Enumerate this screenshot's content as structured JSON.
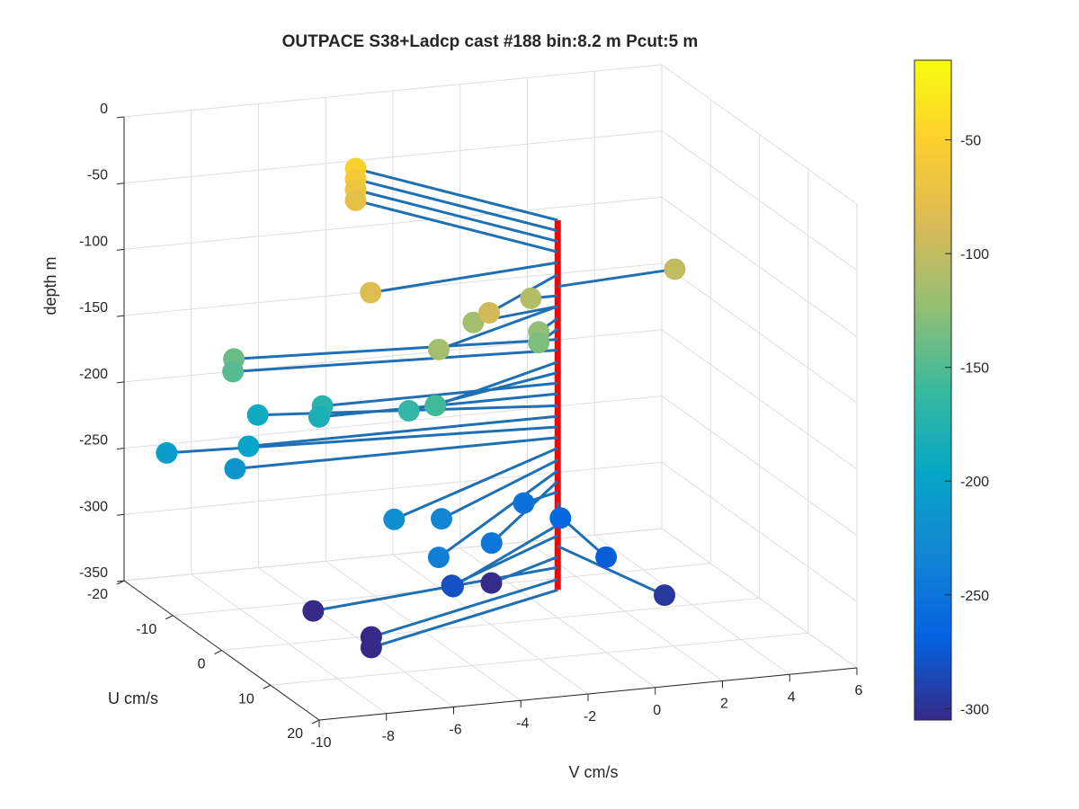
{
  "chart_data": {
    "type": "scatter",
    "title": "OUTPACE S38+Ladcp cast #188 bin:8.2 m  Pcut:5 m",
    "xlabel": "V cm/s",
    "ylabel": "U cm/s",
    "zlabel": "depth m",
    "xlim": [
      -10,
      6
    ],
    "ylim": [
      -20,
      20
    ],
    "zlim": [
      -350,
      0
    ],
    "x_ticks": [
      "-10",
      "-8",
      "-6",
      "-4",
      "-2",
      "0",
      "2",
      "4",
      "6"
    ],
    "y_ticks": [
      "-20",
      "-10",
      "0",
      "10",
      "20"
    ],
    "z_ticks": [
      "0",
      "-50",
      "-100",
      "-150",
      "-200",
      "-250",
      "-300",
      "-350"
    ],
    "grid": true,
    "colorbar": {
      "range": [
        -305,
        -15
      ],
      "ticks": [
        "-50",
        "-100",
        "-150",
        "-200",
        "-250",
        "-300"
      ],
      "colormap": [
        "#352a87",
        "#0363e1",
        "#1485d4",
        "#06a7c6",
        "#38b99e",
        "#92bf73",
        "#d9ba56",
        "#fcce2e",
        "#f9fb0e"
      ]
    },
    "axis_color": "#1f77b4",
    "line_color": "#1f6fb4",
    "series": [
      {
        "points": [
          {
            "v": -3.4,
            "u": -18.0,
            "depth": -50
          },
          {
            "v": -3.4,
            "u": -18.0,
            "depth": -58
          },
          {
            "v": -3.4,
            "u": -18.0,
            "depth": -66
          },
          {
            "v": -3.4,
            "u": -18.0,
            "depth": -74
          },
          {
            "v": -6.0,
            "u": 3.0,
            "depth": -82
          },
          {
            "v": -3.2,
            "u": 8.0,
            "depth": -91
          },
          {
            "v": 3.7,
            "u": -1.5,
            "depth": -100
          },
          {
            "v": -0.8,
            "u": 0.0,
            "depth": -107
          },
          {
            "v": -4.7,
            "u": 8.0,
            "depth": -115
          },
          {
            "v": -2.8,
            "u": 2.0,
            "depth": -115
          },
          {
            "v": -1.0,
            "u": 3.0,
            "depth": -124
          },
          {
            "v": -1.0,
            "u": 3.0,
            "depth": -132
          },
          {
            "v": -9.2,
            "u": -3.0,
            "depth": -140
          },
          {
            "v": -9.3,
            "u": -2.5,
            "depth": -148
          },
          {
            "v": -4.8,
            "u": 8.0,
            "depth": -157
          },
          {
            "v": -5.3,
            "u": 6.0,
            "depth": -165
          },
          {
            "v": -7.0,
            "u": 0.0,
            "depth": -173
          },
          {
            "v": -7.1,
            "u": 0.0,
            "depth": -181
          },
          {
            "v": -8.2,
            "u": -5.0,
            "depth": -190
          },
          {
            "v": -9.2,
            "u": 0.0,
            "depth": -198
          },
          {
            "v": -11.2,
            "u": -3.0,
            "depth": -206
          },
          {
            "v": -9.6,
            "u": 0.0,
            "depth": -214
          },
          {
            "v": -6.9,
            "u": 14.0,
            "depth": -222
          },
          {
            "v": -5.2,
            "u": 12.0,
            "depth": -231
          },
          {
            "v": -6.3,
            "u": 19.0,
            "depth": -239
          },
          {
            "v": -4.0,
            "u": 14.0,
            "depth": -247
          },
          {
            "v": -1.3,
            "u": 2.0,
            "depth": -255
          },
          {
            "v": -0.5,
            "u": 4.0,
            "depth": -263
          },
          {
            "v": -0.3,
            "u": 12.0,
            "depth": -272
          },
          {
            "v": -5.0,
            "u": 13.0,
            "depth": -280
          },
          {
            "v": -4.6,
            "u": 10.0,
            "depth": -288
          },
          {
            "v": 1.0,
            "u": 15.0,
            "depth": -296
          },
          {
            "v": -2.7,
            "u": 5.0,
            "depth": -304
          },
          {
            "v": -8.0,
            "u": 5.0,
            "depth": -312
          },
          {
            "v": -7.0,
            "u": 10.0,
            "depth": -321
          },
          {
            "v": -7.0,
            "u": 10.0,
            "depth": -329
          }
        ]
      }
    ]
  }
}
